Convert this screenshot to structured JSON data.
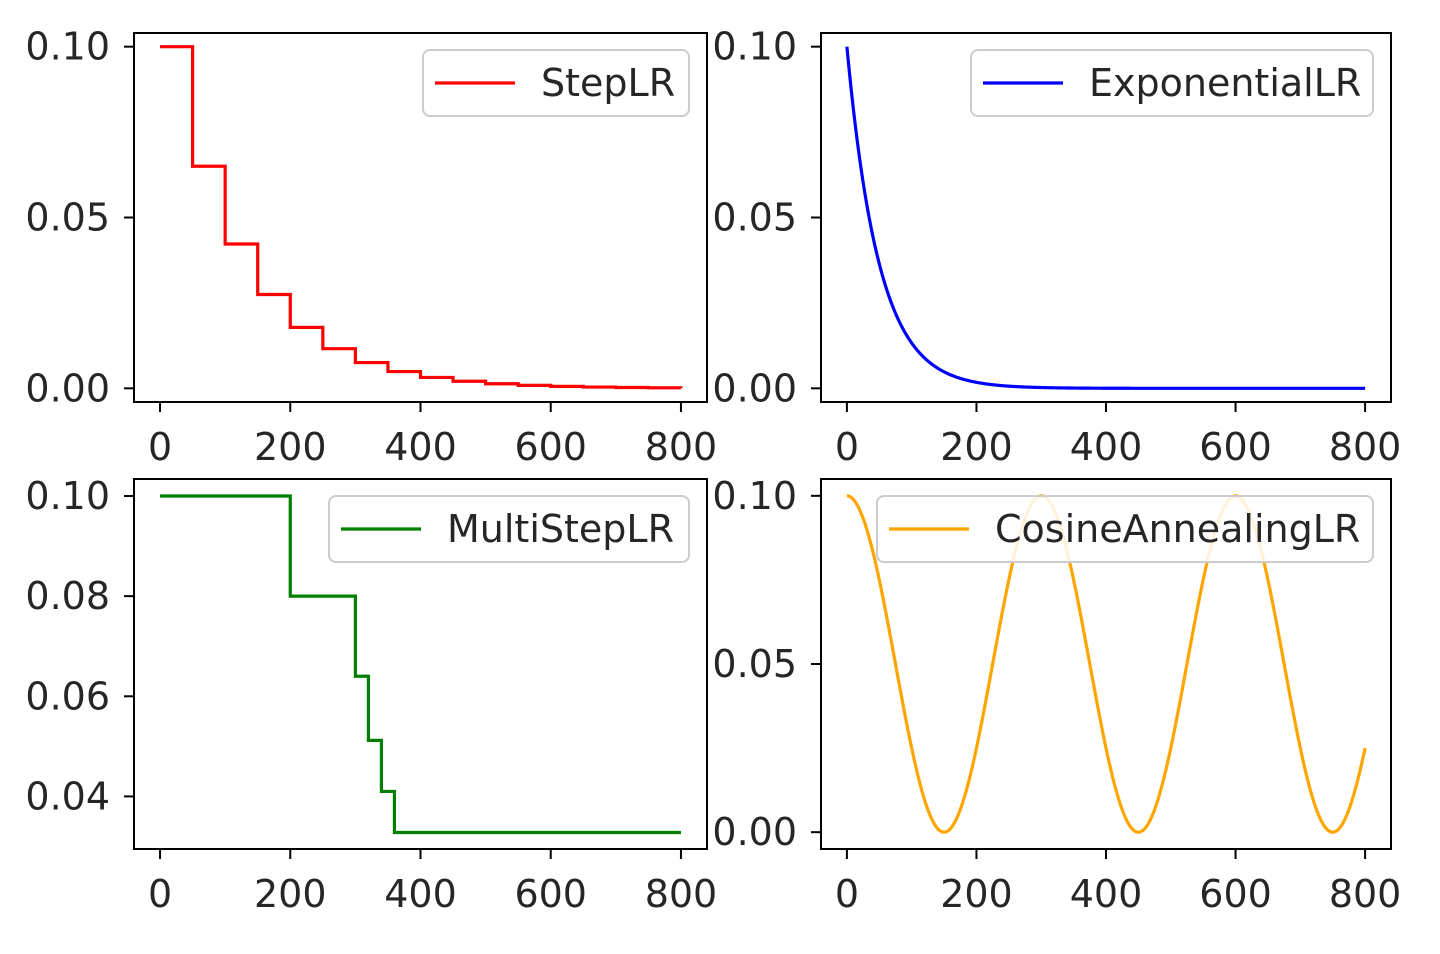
{
  "figure": {
    "background": "#ffffff"
  },
  "chart_data": [
    {
      "type": "line",
      "series": [
        {
          "name": "StepLR",
          "color": "#ff0000",
          "kind": "step",
          "step_size": 50,
          "gamma": 0.65,
          "initial_lr": 0.1,
          "epochs": 800
        }
      ],
      "xlim": [
        -40,
        840
      ],
      "ylim": [
        -0.004,
        0.104
      ],
      "xticks": [
        0,
        200,
        400,
        600,
        800
      ],
      "xtick_labels": [
        "0",
        "200",
        "400",
        "600",
        "800"
      ],
      "yticks": [
        0.0,
        0.05,
        0.1
      ],
      "ytick_labels": [
        "0.00",
        "0.05",
        "0.10"
      ],
      "legend": {
        "position": "upper right",
        "entries": [
          "StepLR"
        ]
      },
      "grid": false
    },
    {
      "type": "line",
      "series": [
        {
          "name": "ExponentialLR",
          "color": "#0000ff",
          "kind": "exponential",
          "gamma": 0.98,
          "initial_lr": 0.1,
          "epochs": 800
        }
      ],
      "xlim": [
        -40,
        840
      ],
      "ylim": [
        -0.004,
        0.104
      ],
      "xticks": [
        0,
        200,
        400,
        600,
        800
      ],
      "xtick_labels": [
        "0",
        "200",
        "400",
        "600",
        "800"
      ],
      "yticks": [
        0.0,
        0.05,
        0.1
      ],
      "ytick_labels": [
        "0.00",
        "0.05",
        "0.10"
      ],
      "legend": {
        "position": "upper right",
        "entries": [
          "ExponentialLR"
        ]
      },
      "grid": false
    },
    {
      "type": "line",
      "series": [
        {
          "name": "MultiStepLR",
          "color": "#008000",
          "kind": "step_pairs",
          "points": [
            [
              0,
              0.1
            ],
            [
              200,
              0.1
            ],
            [
              200,
              0.08
            ],
            [
              300,
              0.08
            ],
            [
              300,
              0.064
            ],
            [
              320,
              0.064
            ],
            [
              320,
              0.0512
            ],
            [
              340,
              0.0512
            ],
            [
              340,
              0.041
            ],
            [
              360,
              0.041
            ],
            [
              360,
              0.0328
            ],
            [
              800,
              0.0328
            ]
          ]
        }
      ],
      "xlim": [
        -40,
        840
      ],
      "ylim": [
        0.0295,
        0.1034
      ],
      "xticks": [
        0,
        200,
        400,
        600,
        800
      ],
      "xtick_labels": [
        "0",
        "200",
        "400",
        "600",
        "800"
      ],
      "yticks": [
        0.04,
        0.06,
        0.08,
        0.1
      ],
      "ytick_labels": [
        "0.04",
        "0.06",
        "0.08",
        "0.10"
      ],
      "legend": {
        "position": "upper right",
        "entries": [
          "MultiStepLR"
        ]
      },
      "grid": false
    },
    {
      "type": "line",
      "series": [
        {
          "name": "CosineAnnealingLR",
          "color": "#ffa500",
          "kind": "cosine",
          "T_max": 150,
          "eta_max": 0.1,
          "eta_min": 0.0,
          "epochs": 800
        }
      ],
      "xlim": [
        -40,
        840
      ],
      "ylim": [
        -0.005,
        0.105
      ],
      "xticks": [
        0,
        200,
        400,
        600,
        800
      ],
      "xtick_labels": [
        "0",
        "200",
        "400",
        "600",
        "800"
      ],
      "yticks": [
        0.0,
        0.05,
        0.1
      ],
      "ytick_labels": [
        "0.00",
        "0.05",
        "0.10"
      ],
      "legend": {
        "position": "upper right",
        "entries": [
          "CosineAnnealingLR"
        ]
      },
      "grid": false
    }
  ]
}
